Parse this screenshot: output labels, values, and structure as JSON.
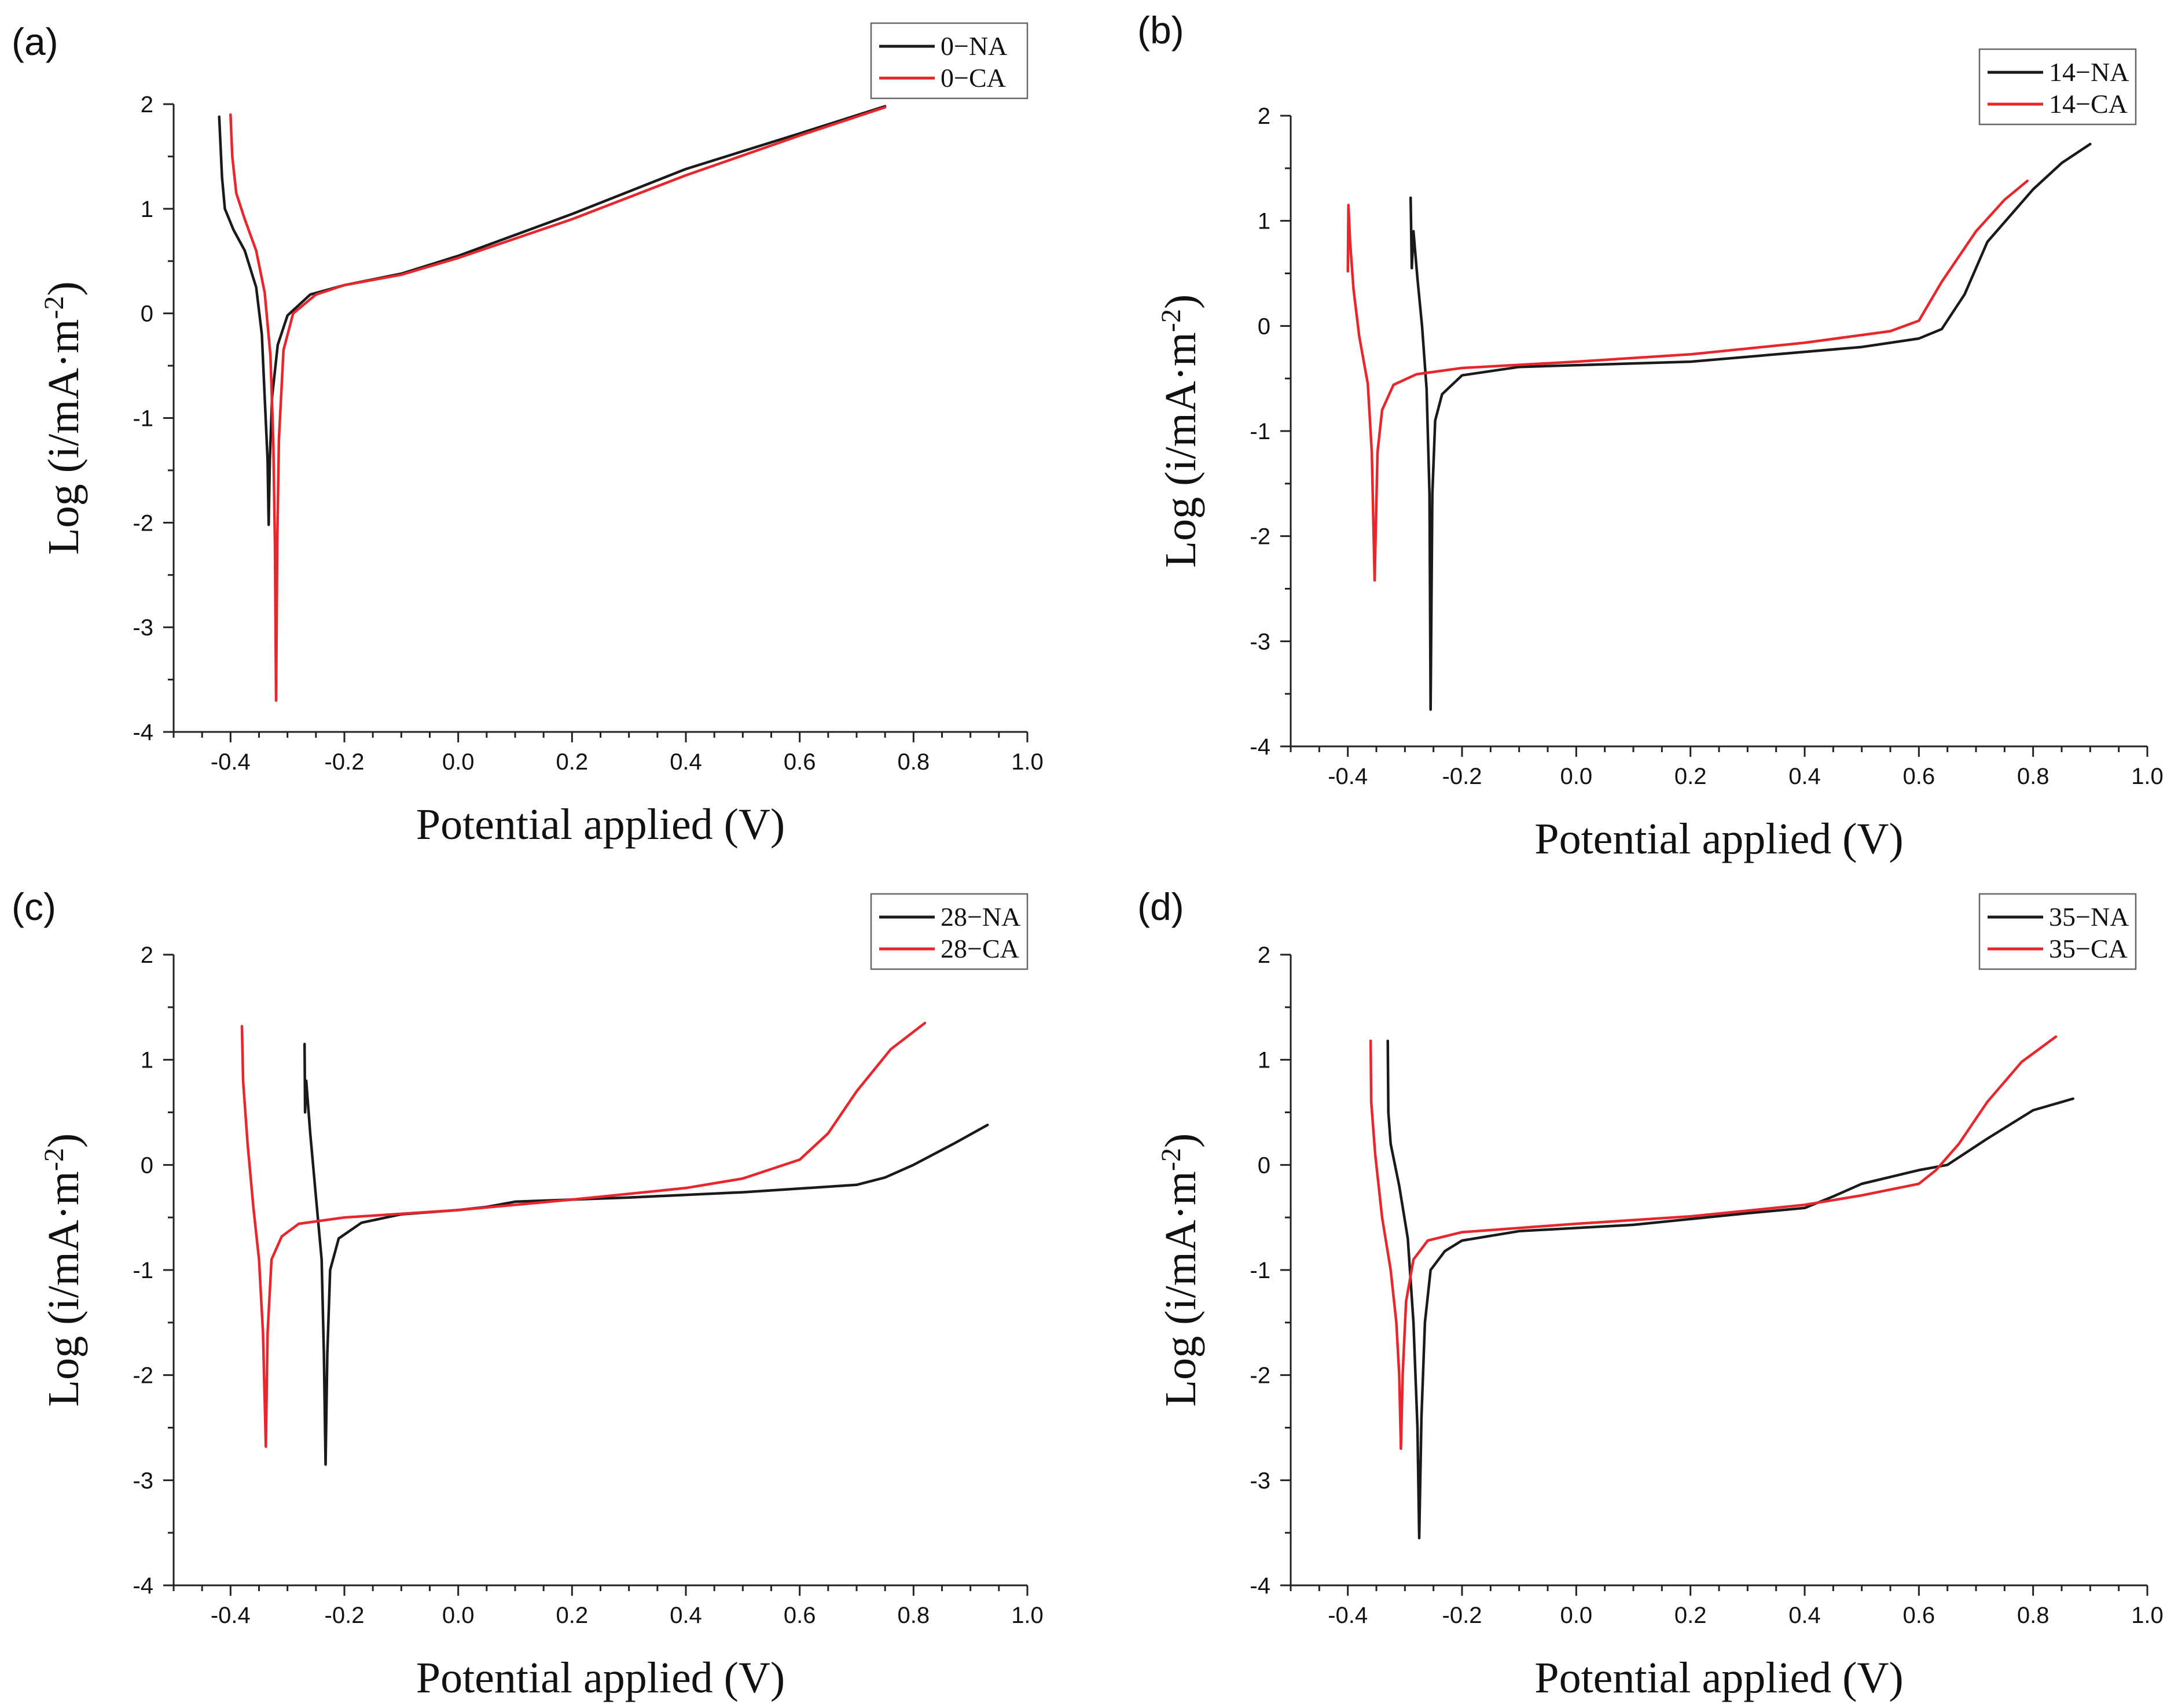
{
  "figure": {
    "colors": {
      "NA": "#1a1a1a",
      "CA": "#e8262b"
    }
  },
  "chart_data": [
    {
      "type": "line",
      "panel_label": "(a)",
      "xlabel": "Potential applied (V)",
      "ylabel": "Log (i/mA·m",
      "ylabel_sup": "-2",
      "ylabel_close": ")",
      "xlim": [
        -0.5,
        1.0
      ],
      "ylim": [
        -4,
        2
      ],
      "xticks": [
        -0.4,
        -0.2,
        0.0,
        0.2,
        0.4,
        0.6,
        0.8,
        1.0
      ],
      "xtick_labels": [
        "-0.4",
        "-0.2",
        "0.0",
        "0.2",
        "0.4",
        "0.6",
        "0.8",
        "1.0"
      ],
      "yticks": [
        -4,
        -3,
        -2,
        -1,
        0,
        1,
        2
      ],
      "ytick_labels": [
        "-4",
        "-3",
        "-2",
        "-1",
        "0",
        "1",
        "2"
      ],
      "legend_position": "top-right",
      "series": [
        {
          "name": "0−NA",
          "color": "#1a1a1a",
          "points": [
            [
              -0.42,
              1.88
            ],
            [
              -0.415,
              1.3
            ],
            [
              -0.41,
              1.0
            ],
            [
              -0.395,
              0.8
            ],
            [
              -0.375,
              0.6
            ],
            [
              -0.355,
              0.25
            ],
            [
              -0.345,
              -0.2
            ],
            [
              -0.34,
              -0.8
            ],
            [
              -0.335,
              -1.4
            ],
            [
              -0.333,
              -2.02
            ],
            [
              -0.331,
              -1.4
            ],
            [
              -0.327,
              -0.8
            ],
            [
              -0.317,
              -0.3
            ],
            [
              -0.3,
              -0.02
            ],
            [
              -0.26,
              0.18
            ],
            [
              -0.2,
              0.27
            ],
            [
              -0.1,
              0.38
            ],
            [
              0.0,
              0.55
            ],
            [
              0.2,
              0.95
            ],
            [
              0.4,
              1.38
            ],
            [
              0.6,
              1.72
            ],
            [
              0.75,
              1.98
            ]
          ]
        },
        {
          "name": "0−CA",
          "color": "#e8262b",
          "points": [
            [
              -0.4,
              1.9
            ],
            [
              -0.397,
              1.5
            ],
            [
              -0.39,
              1.15
            ],
            [
              -0.375,
              0.9
            ],
            [
              -0.355,
              0.6
            ],
            [
              -0.34,
              0.2
            ],
            [
              -0.33,
              -0.4
            ],
            [
              -0.325,
              -1.2
            ],
            [
              -0.322,
              -2.2
            ],
            [
              -0.32,
              -3.7
            ],
            [
              -0.318,
              -2.2
            ],
            [
              -0.315,
              -1.2
            ],
            [
              -0.307,
              -0.35
            ],
            [
              -0.29,
              0.0
            ],
            [
              -0.25,
              0.18
            ],
            [
              -0.2,
              0.27
            ],
            [
              -0.1,
              0.37
            ],
            [
              0.0,
              0.53
            ],
            [
              0.2,
              0.9
            ],
            [
              0.4,
              1.32
            ],
            [
              0.6,
              1.7
            ],
            [
              0.75,
              1.97
            ]
          ]
        }
      ]
    },
    {
      "type": "line",
      "panel_label": "(b)",
      "xlabel": "Potential applied (V)",
      "ylabel": "Log (i/mA·m",
      "ylabel_sup": "-2",
      "ylabel_close": ")",
      "xlim": [
        -0.5,
        1.0
      ],
      "ylim": [
        -4,
        2
      ],
      "xticks": [
        -0.4,
        -0.2,
        0.0,
        0.2,
        0.4,
        0.6,
        0.8,
        1.0
      ],
      "xtick_labels": [
        "-0.4",
        "-0.2",
        "0.0",
        "0.2",
        "0.4",
        "0.6",
        "0.8",
        "1.0"
      ],
      "yticks": [
        -4,
        -3,
        -2,
        -1,
        0,
        1,
        2
      ],
      "ytick_labels": [
        "-4",
        "-3",
        "-2",
        "-1",
        "0",
        "1",
        "2"
      ],
      "legend_position": "top-right",
      "series": [
        {
          "name": "14−NA",
          "color": "#1a1a1a",
          "points": [
            [
              -0.29,
              1.22
            ],
            [
              -0.288,
              0.55
            ],
            [
              -0.285,
              0.9
            ],
            [
              -0.278,
              0.45
            ],
            [
              -0.27,
              0.0
            ],
            [
              -0.262,
              -0.6
            ],
            [
              -0.257,
              -1.6
            ],
            [
              -0.255,
              -3.65
            ],
            [
              -0.252,
              -1.6
            ],
            [
              -0.247,
              -0.9
            ],
            [
              -0.235,
              -0.65
            ],
            [
              -0.2,
              -0.47
            ],
            [
              -0.1,
              -0.39
            ],
            [
              0.2,
              -0.34
            ],
            [
              0.5,
              -0.2
            ],
            [
              0.6,
              -0.12
            ],
            [
              0.64,
              -0.03
            ],
            [
              0.68,
              0.3
            ],
            [
              0.72,
              0.8
            ],
            [
              0.8,
              1.3
            ],
            [
              0.85,
              1.55
            ],
            [
              0.9,
              1.73
            ]
          ]
        },
        {
          "name": "14−CA",
          "color": "#e8262b",
          "points": [
            [
              -0.4,
              0.52
            ],
            [
              -0.399,
              1.15
            ],
            [
              -0.396,
              0.8
            ],
            [
              -0.39,
              0.35
            ],
            [
              -0.38,
              -0.1
            ],
            [
              -0.365,
              -0.55
            ],
            [
              -0.358,
              -1.2
            ],
            [
              -0.353,
              -2.42
            ],
            [
              -0.348,
              -1.2
            ],
            [
              -0.34,
              -0.8
            ],
            [
              -0.32,
              -0.56
            ],
            [
              -0.28,
              -0.46
            ],
            [
              -0.2,
              -0.4
            ],
            [
              0.0,
              -0.34
            ],
            [
              0.2,
              -0.27
            ],
            [
              0.4,
              -0.16
            ],
            [
              0.55,
              -0.05
            ],
            [
              0.6,
              0.05
            ],
            [
              0.64,
              0.42
            ],
            [
              0.7,
              0.9
            ],
            [
              0.75,
              1.2
            ],
            [
              0.79,
              1.38
            ]
          ]
        }
      ]
    },
    {
      "type": "line",
      "panel_label": "(c)",
      "xlabel": "Potential applied (V)",
      "ylabel": "Log (i/mA·m",
      "ylabel_sup": "-2",
      "ylabel_close": ")",
      "xlim": [
        -0.5,
        1.0
      ],
      "ylim": [
        -4,
        2
      ],
      "xticks": [
        -0.4,
        -0.2,
        0.0,
        0.2,
        0.4,
        0.6,
        0.8,
        1.0
      ],
      "xtick_labels": [
        "-0.4",
        "-0.2",
        "0.0",
        "0.2",
        "0.4",
        "0.6",
        "0.8",
        "1.0"
      ],
      "yticks": [
        -4,
        -3,
        -2,
        -1,
        0,
        1,
        2
      ],
      "ytick_labels": [
        "-4",
        "-3",
        "-2",
        "-1",
        "0",
        "1",
        "2"
      ],
      "legend_position": "top-right",
      "series": [
        {
          "name": "28−NA",
          "color": "#1a1a1a",
          "points": [
            [
              -0.27,
              1.15
            ],
            [
              -0.269,
              0.5
            ],
            [
              -0.267,
              0.8
            ],
            [
              -0.26,
              0.3
            ],
            [
              -0.25,
              -0.3
            ],
            [
              -0.24,
              -0.9
            ],
            [
              -0.236,
              -1.8
            ],
            [
              -0.233,
              -2.85
            ],
            [
              -0.23,
              -1.8
            ],
            [
              -0.225,
              -1.0
            ],
            [
              -0.21,
              -0.7
            ],
            [
              -0.17,
              -0.55
            ],
            [
              -0.1,
              -0.47
            ],
            [
              0.0,
              -0.43
            ],
            [
              0.05,
              -0.4
            ],
            [
              0.1,
              -0.35
            ],
            [
              0.3,
              -0.31
            ],
            [
              0.5,
              -0.26
            ],
            [
              0.7,
              -0.19
            ],
            [
              0.75,
              -0.12
            ],
            [
              0.8,
              0.0
            ],
            [
              0.87,
              0.2
            ],
            [
              0.93,
              0.38
            ]
          ]
        },
        {
          "name": "28−CA",
          "color": "#e8262b",
          "points": [
            [
              -0.38,
              1.32
            ],
            [
              -0.378,
              0.8
            ],
            [
              -0.37,
              0.2
            ],
            [
              -0.36,
              -0.4
            ],
            [
              -0.35,
              -0.9
            ],
            [
              -0.343,
              -1.6
            ],
            [
              -0.338,
              -2.68
            ],
            [
              -0.335,
              -1.6
            ],
            [
              -0.328,
              -0.9
            ],
            [
              -0.31,
              -0.68
            ],
            [
              -0.28,
              -0.56
            ],
            [
              -0.2,
              -0.5
            ],
            [
              0.0,
              -0.43
            ],
            [
              0.2,
              -0.33
            ],
            [
              0.4,
              -0.22
            ],
            [
              0.5,
              -0.13
            ],
            [
              0.6,
              0.05
            ],
            [
              0.65,
              0.3
            ],
            [
              0.7,
              0.7
            ],
            [
              0.76,
              1.1
            ],
            [
              0.82,
              1.35
            ]
          ]
        }
      ]
    },
    {
      "type": "line",
      "panel_label": "(d)",
      "xlabel": "Potential applied (V)",
      "ylabel": "Log (i/mA·m",
      "ylabel_sup": "-2",
      "ylabel_close": ")",
      "xlim": [
        -0.5,
        1.0
      ],
      "ylim": [
        -4,
        2
      ],
      "xticks": [
        -0.4,
        -0.2,
        0.0,
        0.2,
        0.4,
        0.6,
        0.8,
        1.0
      ],
      "xtick_labels": [
        "-0.4",
        "-0.2",
        "0.0",
        "0.2",
        "0.4",
        "0.6",
        "0.8",
        "1.0"
      ],
      "yticks": [
        -4,
        -3,
        -2,
        -1,
        0,
        1,
        2
      ],
      "ytick_labels": [
        "-4",
        "-3",
        "-2",
        "-1",
        "0",
        "1",
        "2"
      ],
      "legend_position": "top-right",
      "series": [
        {
          "name": "35−NA",
          "color": "#1a1a1a",
          "points": [
            [
              -0.33,
              1.18
            ],
            [
              -0.329,
              0.5
            ],
            [
              -0.325,
              0.2
            ],
            [
              -0.31,
              -0.2
            ],
            [
              -0.295,
              -0.7
            ],
            [
              -0.285,
              -1.5
            ],
            [
              -0.278,
              -2.5
            ],
            [
              -0.275,
              -3.55
            ],
            [
              -0.271,
              -2.4
            ],
            [
              -0.265,
              -1.5
            ],
            [
              -0.255,
              -1.0
            ],
            [
              -0.23,
              -0.82
            ],
            [
              -0.2,
              -0.72
            ],
            [
              -0.1,
              -0.63
            ],
            [
              0.1,
              -0.57
            ],
            [
              0.3,
              -0.46
            ],
            [
              0.4,
              -0.41
            ],
            [
              0.45,
              -0.3
            ],
            [
              0.5,
              -0.18
            ],
            [
              0.6,
              -0.05
            ],
            [
              0.65,
              0.0
            ],
            [
              0.72,
              0.25
            ],
            [
              0.8,
              0.52
            ],
            [
              0.87,
              0.63
            ]
          ]
        },
        {
          "name": "35−CA",
          "color": "#e8262b",
          "points": [
            [
              -0.36,
              1.18
            ],
            [
              -0.359,
              0.6
            ],
            [
              -0.352,
              0.1
            ],
            [
              -0.34,
              -0.5
            ],
            [
              -0.325,
              -1.0
            ],
            [
              -0.315,
              -1.5
            ],
            [
              -0.31,
              -2.0
            ],
            [
              -0.307,
              -2.7
            ],
            [
              -0.304,
              -2.0
            ],
            [
              -0.298,
              -1.3
            ],
            [
              -0.285,
              -0.9
            ],
            [
              -0.26,
              -0.72
            ],
            [
              -0.2,
              -0.64
            ],
            [
              0.0,
              -0.56
            ],
            [
              0.2,
              -0.49
            ],
            [
              0.4,
              -0.38
            ],
            [
              0.5,
              -0.29
            ],
            [
              0.6,
              -0.18
            ],
            [
              0.63,
              -0.05
            ],
            [
              0.67,
              0.2
            ],
            [
              0.72,
              0.6
            ],
            [
              0.78,
              0.98
            ],
            [
              0.84,
              1.22
            ]
          ]
        }
      ]
    }
  ]
}
